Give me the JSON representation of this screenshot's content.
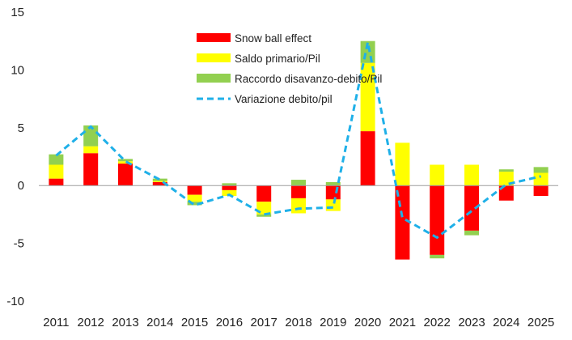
{
  "chart_data": {
    "type": "bar",
    "stacked": true,
    "title": "",
    "xlabel": "",
    "ylabel": "",
    "ylim": [
      -10,
      15
    ],
    "yticks": [
      -10,
      -5,
      0,
      5,
      10,
      15
    ],
    "ytick_labels": [
      "-10",
      "-5",
      "0",
      "5",
      "10",
      "15"
    ],
    "grid": false,
    "legend_position": "top-center",
    "categories": [
      "2011",
      "2012",
      "2013",
      "2014",
      "2015",
      "2016",
      "2017",
      "2018",
      "2019",
      "2020",
      "2021",
      "2022",
      "2023",
      "2024",
      "2025"
    ],
    "series": [
      {
        "name": "Snow ball effect",
        "kind": "bar",
        "color": "#ff0000",
        "values": [
          0.6,
          2.8,
          1.9,
          0.3,
          -0.8,
          -0.4,
          -1.4,
          -1.1,
          -1.2,
          4.7,
          -6.4,
          -6.0,
          -3.9,
          -1.3,
          -0.9
        ]
      },
      {
        "name": "Saldo primario/Pil",
        "kind": "bar",
        "color": "#ffff00",
        "values": [
          1.2,
          0.6,
          0.2,
          0.1,
          -0.6,
          -0.5,
          -1.1,
          -1.3,
          -1.0,
          5.9,
          3.7,
          1.8,
          1.8,
          1.2,
          1.1
        ]
      },
      {
        "name": "Raccordo disavanzo-debito/Pil",
        "kind": "bar",
        "color": "#92d050",
        "values": [
          0.9,
          1.8,
          0.2,
          0.2,
          -0.3,
          0.2,
          -0.2,
          0.5,
          0.3,
          1.9,
          0.0,
          -0.3,
          -0.4,
          0.2,
          0.5
        ]
      },
      {
        "name": "Variazione debito/pil",
        "kind": "line",
        "color": "#1fb0e8",
        "dashed": true,
        "values": [
          2.6,
          5.1,
          2.1,
          0.5,
          -1.7,
          -0.8,
          -2.5,
          -2.0,
          -1.9,
          12.4,
          -2.8,
          -4.5,
          -2.2,
          0.1,
          0.8
        ]
      }
    ]
  }
}
